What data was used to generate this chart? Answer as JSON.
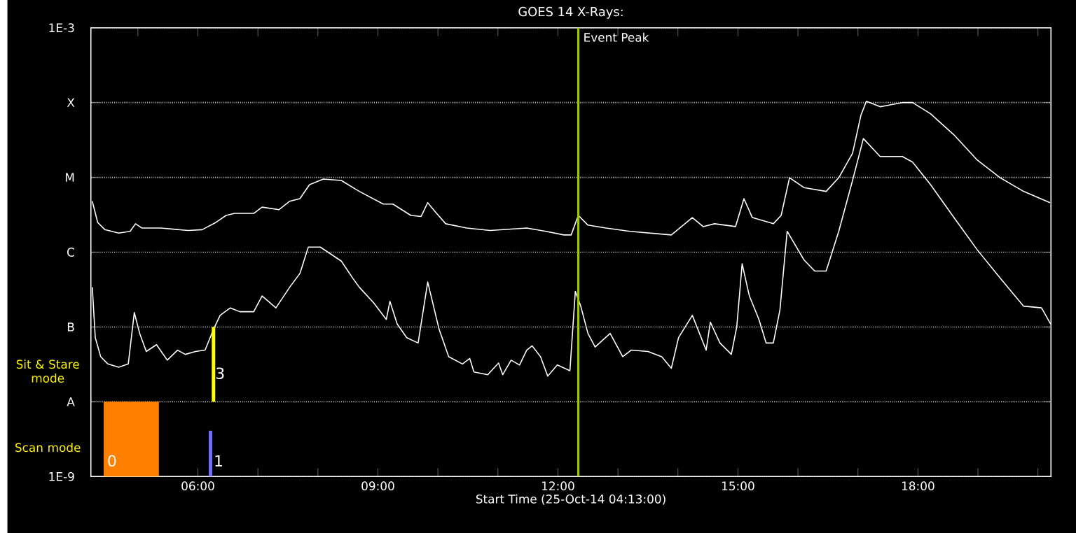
{
  "chart_data": {
    "type": "line",
    "title": "GOES 14 X-Rays:",
    "xlabel": "Start Time (25-Oct-14 04:13:00)",
    "log": "y",
    "grid": "y",
    "xlim": [
      4.2167,
      20.2167
    ],
    "ylim": [
      1e-09,
      0.001
    ],
    "xticks": [
      {
        "value": 5,
        "label": null
      },
      {
        "value": 6,
        "label": "06:00"
      },
      {
        "value": 7,
        "label": null
      },
      {
        "value": 8,
        "label": null
      },
      {
        "value": 9,
        "label": "09:00"
      },
      {
        "value": 10,
        "label": null
      },
      {
        "value": 11,
        "label": null
      },
      {
        "value": 12,
        "label": "12:00"
      },
      {
        "value": 13,
        "label": null
      },
      {
        "value": 14,
        "label": null
      },
      {
        "value": 15,
        "label": "15:00"
      },
      {
        "value": 16,
        "label": null
      },
      {
        "value": 17,
        "label": null
      },
      {
        "value": 18,
        "label": "18:00"
      },
      {
        "value": 19,
        "label": null
      },
      {
        "value": 20,
        "label": null
      }
    ],
    "yticks": [
      {
        "value": 1e-09,
        "label": "1E-9"
      },
      {
        "value": 1e-08,
        "label": "A"
      },
      {
        "value": 1e-07,
        "label": "B"
      },
      {
        "value": 1e-06,
        "label": "C"
      },
      {
        "value": 1e-05,
        "label": "M"
      },
      {
        "value": 0.0001,
        "label": "X"
      },
      {
        "value": 0.001,
        "label": "1E-3"
      }
    ],
    "series": [
      {
        "color": "#ffffff",
        "x": [
          4.24,
          4.33,
          4.45,
          4.68,
          4.87,
          4.96,
          5.07,
          5.38,
          5.84,
          6.07,
          6.3,
          6.47,
          6.61,
          6.93,
          7.07,
          7.35,
          7.53,
          7.7,
          7.86,
          8.09,
          8.39,
          8.69,
          9.09,
          9.25,
          9.55,
          9.72,
          9.83,
          9.95,
          10.13,
          10.48,
          10.87,
          11.48,
          11.8,
          12.1,
          12.22,
          12.34,
          12.5,
          12.8,
          13.2,
          13.89,
          14.24,
          14.42,
          14.61,
          14.96,
          15.1,
          15.24,
          15.59,
          15.72,
          15.86,
          16.1,
          16.47,
          16.68,
          16.91,
          17.05,
          17.14,
          17.37,
          17.74,
          17.91,
          18.21,
          18.6,
          18.99,
          19.37,
          19.76,
          20.2
        ],
        "values": [
          4.8e-06,
          2.5e-06,
          2e-06,
          1.8e-06,
          1.9e-06,
          2.4e-06,
          2.1e-06,
          2.1e-06,
          1.95e-06,
          2e-06,
          2.5e-06,
          3.1e-06,
          3.3e-06,
          3.3e-06,
          4e-06,
          3.7e-06,
          4.8e-06,
          5.2e-06,
          8e-06,
          9.5e-06,
          9.1e-06,
          6.5e-06,
          4.4e-06,
          4.4e-06,
          3.1e-06,
          3e-06,
          4.6e-06,
          3.5e-06,
          2.4e-06,
          2.1e-06,
          1.95e-06,
          2.1e-06,
          1.9e-06,
          1.7e-06,
          1.7e-06,
          3.1e-06,
          2.3e-06,
          2.1e-06,
          1.9e-06,
          1.7e-06,
          2.9e-06,
          2.2e-06,
          2.4e-06,
          2.2e-06,
          5.2e-06,
          2.9e-06,
          2.4e-06,
          3.1e-06,
          9.9e-06,
          7.3e-06,
          6.5e-06,
          9.9e-06,
          2.1e-05,
          6.8e-05,
          0.000104,
          8.8e-05,
          0.0001,
          0.0001,
          7.1e-05,
          3.7e-05,
          1.7e-05,
          9.9e-06,
          6.5e-06,
          4.6e-06
        ]
      },
      {
        "color": "#ffffff",
        "x": [
          4.24,
          4.29,
          4.38,
          4.5,
          4.68,
          4.84,
          4.94,
          5.03,
          5.14,
          5.31,
          5.49,
          5.66,
          5.79,
          5.96,
          6.12,
          6.26,
          6.37,
          6.54,
          6.7,
          6.93,
          7.07,
          7.3,
          7.53,
          7.7,
          7.84,
          8.04,
          8.39,
          8.58,
          8.69,
          8.93,
          9.14,
          9.2,
          9.32,
          9.48,
          9.67,
          9.83,
          10.02,
          10.18,
          10.41,
          10.53,
          10.6,
          10.83,
          11.01,
          11.08,
          11.22,
          11.36,
          11.48,
          11.57,
          11.71,
          11.83,
          11.99,
          12.2,
          12.29,
          12.38,
          12.5,
          12.62,
          12.87,
          13.08,
          13.22,
          13.5,
          13.73,
          13.89,
          14.01,
          14.24,
          14.47,
          14.54,
          14.7,
          14.89,
          14.98,
          15.07,
          15.19,
          15.35,
          15.47,
          15.59,
          15.7,
          15.82,
          16.1,
          16.28,
          16.47,
          16.68,
          16.91,
          17.09,
          17.37,
          17.74,
          17.91,
          18.21,
          18.6,
          18.99,
          19.37,
          19.76,
          20.06,
          20.21
        ],
        "values": [
          3.4e-07,
          7.2e-08,
          4e-08,
          3.2e-08,
          2.9e-08,
          3.2e-08,
          1.56e-07,
          8.2e-08,
          4.7e-08,
          5.8e-08,
          3.6e-08,
          4.9e-08,
          4.3e-08,
          4.7e-08,
          4.9e-08,
          9.3e-08,
          1.43e-07,
          1.8e-07,
          1.6e-07,
          1.6e-07,
          2.6e-07,
          1.8e-07,
          3.4e-07,
          5.2e-07,
          1.17e-06,
          1.17e-06,
          7.6e-07,
          4.5e-07,
          3.4e-07,
          2.1e-07,
          1.26e-07,
          2.2e-07,
          1.1e-07,
          7.2e-08,
          6.1e-08,
          4e-07,
          9.3e-08,
          4e-08,
          3.2e-08,
          3.8e-08,
          2.5e-08,
          2.3e-08,
          3.3e-08,
          2.3e-08,
          3.6e-08,
          3.1e-08,
          4.9e-08,
          5.6e-08,
          4e-08,
          2.2e-08,
          3.1e-08,
          2.6e-08,
          3e-07,
          1.9e-07,
          8.2e-08,
          5.4e-08,
          8.2e-08,
          4e-08,
          4.9e-08,
          4.7e-08,
          4e-08,
          2.8e-08,
          7.2e-08,
          1.43e-07,
          4.9e-08,
          1.16e-07,
          6.1e-08,
          4.3e-08,
          1e-07,
          7e-07,
          2.6e-07,
          1.26e-07,
          6.1e-08,
          6.1e-08,
          1.7e-07,
          1.9e-06,
          7.9e-07,
          5.6e-07,
          5.6e-07,
          1.9e-06,
          9.1e-06,
          3.3e-05,
          1.9e-05,
          1.9e-05,
          1.6e-05,
          8e-06,
          2.9e-06,
          1.07e-06,
          4.5e-07,
          1.9e-07,
          1.8e-07,
          1.1e-07
        ]
      },
      {
        "type": "line",
        "color": "#ffff00",
        "x": [
          6.26,
          6.26
        ],
        "values": [
          1e-08,
          1e-07
        ]
      },
      {
        "type": "line",
        "color": "#7070ff",
        "x": [
          6.21,
          6.21
        ],
        "values": [
          1e-09,
          4.1e-09
        ]
      },
      {
        "type": "area",
        "color": "#ff8000",
        "x": [
          4.43,
          5.35
        ],
        "values": [
          1e-08,
          1e-08
        ]
      }
    ],
    "ref_lines": [
      {
        "axis": "x",
        "value": 12.34,
        "label": "Event Peak",
        "color": "#99cc00"
      }
    ],
    "annotations": [
      "Sit & Stare mode",
      "Scan mode",
      "0",
      "1",
      {
        "text": "3",
        "x": 6.37,
        "y": 2.4e-08
      }
    ]
  }
}
